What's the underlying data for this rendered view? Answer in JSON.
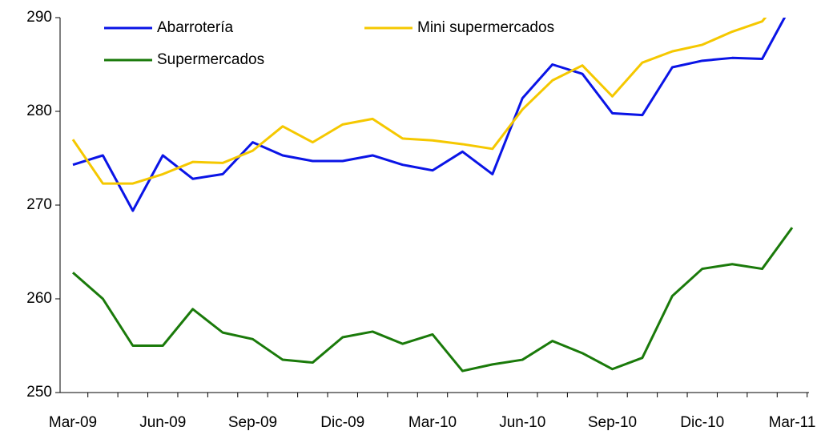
{
  "chart_data": {
    "type": "line",
    "categories": [
      "Mar-09",
      null,
      null,
      "Jun-09",
      null,
      null,
      "Sep-09",
      null,
      null,
      "Dic-09",
      null,
      null,
      "Mar-10",
      null,
      null,
      "Jun-10",
      null,
      null,
      "Sep-10",
      null,
      null,
      "Dic-10",
      null,
      null,
      "Mar-11"
    ],
    "series": [
      {
        "name": "Abarrotería",
        "color": "#0a14e6",
        "values": [
          274.3,
          275.3,
          269.4,
          275.3,
          272.8,
          273.3,
          276.7,
          275.3,
          274.7,
          274.7,
          275.3,
          274.3,
          273.7,
          275.7,
          273.3,
          281.4,
          285.0,
          284.0,
          279.8,
          279.6,
          284.7,
          285.4,
          285.7,
          285.6,
          291.5
        ]
      },
      {
        "name": "Mini supermercados",
        "color": "#f5c800",
        "values": [
          277.0,
          272.3,
          272.3,
          273.3,
          274.6,
          274.5,
          275.8,
          278.4,
          276.7,
          278.6,
          279.2,
          277.1,
          276.9,
          276.5,
          276.0,
          280.2,
          283.3,
          284.9,
          281.6,
          285.2,
          286.4,
          287.1,
          288.5,
          289.6,
          293.5
        ]
      },
      {
        "name": "Supermercados",
        "color": "#1a7a0a",
        "values": [
          262.8,
          260.0,
          255.0,
          255.0,
          258.9,
          256.4,
          255.7,
          253.5,
          253.2,
          255.9,
          256.5,
          255.2,
          256.2,
          252.3,
          253.0,
          253.5,
          255.5,
          254.2,
          252.5,
          253.7,
          260.3,
          263.2,
          263.7,
          263.2,
          267.6
        ]
      }
    ],
    "ylim": [
      250,
      290
    ],
    "yticks": [
      250,
      260,
      270,
      280,
      290
    ],
    "grid": false
  }
}
